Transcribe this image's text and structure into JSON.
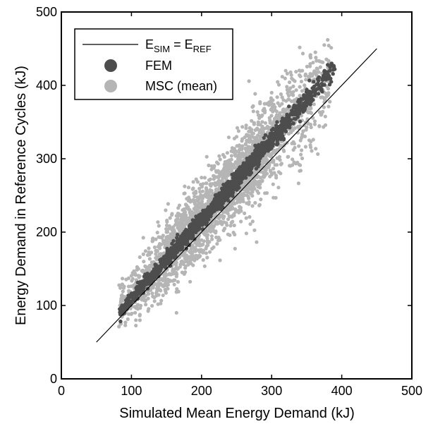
{
  "chart_data": {
    "type": "scatter",
    "xlabel": "Simulated Mean Energy Demand (kJ)",
    "ylabel": "Energy Demand in Reference Cycles (kJ)",
    "xlim": [
      0,
      500
    ],
    "ylim": [
      0,
      500
    ],
    "xticks": [
      0,
      100,
      200,
      300,
      400,
      500
    ],
    "yticks": [
      0,
      100,
      200,
      300,
      400,
      500
    ],
    "grid": false,
    "legend_position": "top-left",
    "reference_line": {
      "label_main": "E",
      "label_sub1": "SIM",
      "label_eq": " = E",
      "label_sub2": "REF",
      "x": [
        50,
        450
      ],
      "y": [
        50,
        450
      ]
    },
    "series": [
      {
        "name": "FEM",
        "color": "#4d4d4d",
        "description": "points clustered tightly along the reference line, slightly above it",
        "x_range": [
          82,
          390
        ],
        "relation": "y ≈ 1.08·x (±10 kJ)",
        "anchor_points": [
          [
            84,
            88
          ],
          [
            100,
            105
          ],
          [
            150,
            160
          ],
          [
            200,
            215
          ],
          [
            250,
            270
          ],
          [
            300,
            325
          ],
          [
            340,
            375
          ],
          [
            360,
            405
          ],
          [
            380,
            428
          ],
          [
            390,
            422
          ]
        ]
      },
      {
        "name": "MSC (mean)",
        "color": "#b5b5b5",
        "description": "wide band around the FEM cloud, mostly above the reference line",
        "x_range": [
          82,
          385
        ],
        "relation": "y ≈ 1.06·x (±40–55 kJ)",
        "anchor_points": [
          [
            85,
            75
          ],
          [
            110,
            150
          ],
          [
            150,
            200
          ],
          [
            200,
            240
          ],
          [
            250,
            330
          ],
          [
            300,
            390
          ],
          [
            320,
            420
          ],
          [
            355,
            440
          ],
          [
            375,
            455
          ],
          [
            380,
            462
          ]
        ]
      }
    ]
  }
}
